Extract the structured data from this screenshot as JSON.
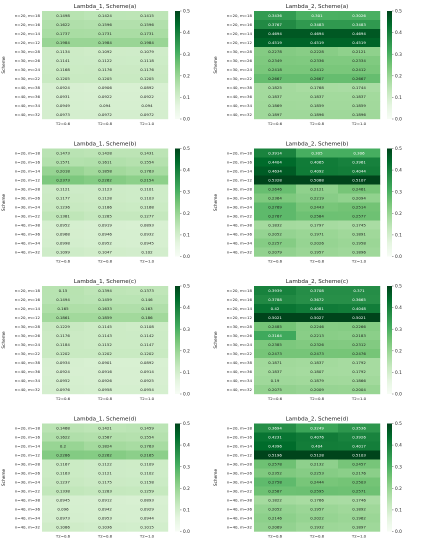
{
  "chart_data": [
    {
      "type": "heatmap",
      "title": "Lambda_1, Scheme(a)",
      "ylabel": "Scheme",
      "x": [
        "T2=0.6",
        "T2=0.8",
        "T2=1.0"
      ],
      "y": [
        "n=20, m=18",
        "n=20, m=16",
        "n=20, m=14",
        "n=20, m=12",
        "n=30, m=28",
        "n=30, m=26",
        "n=30, m=24",
        "n=30, m=22",
        "n=40, m=38",
        "n=40, m=36",
        "n=40, m=34",
        "n=40, m=32"
      ],
      "values": [
        [
          0.1498,
          0.1424,
          0.1415
        ],
        [
          0.1622,
          0.1596,
          0.1596
        ],
        [
          0.1737,
          0.1731,
          0.1731
        ],
        [
          0.1984,
          0.1984,
          0.1984
        ],
        [
          0.1134,
          0.1092,
          0.1079
        ],
        [
          0.1141,
          0.1122,
          0.1118
        ],
        [
          0.1168,
          0.1176,
          0.1176
        ],
        [
          0.1205,
          0.1205,
          0.1205
        ],
        [
          0.0924,
          0.0906,
          0.0892
        ],
        [
          0.0931,
          0.0922,
          0.0922
        ],
        [
          0.0949,
          0.094,
          0.094
        ],
        [
          0.0973,
          0.0972,
          0.0972
        ]
      ],
      "colorbar": {
        "ticks": [
          0.0,
          0.1,
          0.2,
          0.3,
          0.4,
          0.5
        ],
        "min": 0.0,
        "max": 0.5
      }
    },
    {
      "type": "heatmap",
      "title": "Lambda_2, Scheme(a)",
      "ylabel": "Scheme",
      "x": [
        "T2=0.6",
        "T2=0.8",
        "T2=1.0"
      ],
      "y": [
        "n=20, m=18",
        "n=20, m=16",
        "n=20, m=14",
        "n=20, m=12",
        "n=30, m=28",
        "n=30, m=26",
        "n=30, m=24",
        "n=30, m=22",
        "n=40, m=38",
        "n=40, m=36",
        "n=40, m=34",
        "n=40, m=32"
      ],
      "values": [
        [
          0.3436,
          0.301,
          0.3026
        ],
        [
          0.3767,
          0.3483,
          0.3483
        ],
        [
          0.4694,
          0.4694,
          0.4694
        ],
        [
          0.4519,
          0.4519,
          0.4519
        ],
        [
          0.2278,
          0.2228,
          0.2121
        ],
        [
          0.2349,
          0.2336,
          0.2334
        ],
        [
          0.2418,
          0.2412,
          0.2412
        ],
        [
          0.2667,
          0.2667,
          0.2667
        ],
        [
          0.1825,
          0.1768,
          0.1744
        ],
        [
          0.1837,
          0.1837,
          0.1837
        ],
        [
          0.1869,
          0.1859,
          0.1859
        ],
        [
          0.1897,
          0.1896,
          0.1896
        ]
      ],
      "colorbar": {
        "ticks": [
          0.0,
          0.1,
          0.2,
          0.3,
          0.4,
          0.5
        ],
        "min": 0.0,
        "max": 0.5
      }
    },
    {
      "type": "heatmap",
      "title": "Lambda_1, Scheme(b)",
      "ylabel": "Scheme",
      "x": [
        "T2=0.6",
        "T2=0.8",
        "T2=1.0"
      ],
      "y": [
        "n=20, m=18",
        "n=20, m=16",
        "n=20, m=14",
        "n=20, m=12",
        "n=30, m=28",
        "n=30, m=26",
        "n=30, m=24",
        "n=30, m=22",
        "n=40, m=38",
        "n=40, m=36",
        "n=40, m=34",
        "n=40, m=32"
      ],
      "values": [
        [
          0.1473,
          0.1428,
          0.1431
        ],
        [
          0.1571,
          0.1611,
          0.1554
        ],
        [
          0.2018,
          0.1858,
          0.1763
        ],
        [
          0.2373,
          0.2262,
          0.2154
        ],
        [
          0.1121,
          0.1123,
          0.1101
        ],
        [
          0.1177,
          0.1128,
          0.1103
        ],
        [
          0.1236,
          0.1186,
          0.1168
        ],
        [
          0.1381,
          0.1285,
          0.1277
        ],
        [
          0.0952,
          0.0919,
          0.0893
        ],
        [
          0.0968,
          0.0946,
          0.0932
        ],
        [
          0.0998,
          0.0952,
          0.0945
        ],
        [
          0.1099,
          0.1047,
          0.102
        ]
      ],
      "colorbar": {
        "ticks": [
          0.0,
          0.1,
          0.2,
          0.3,
          0.4,
          0.5
        ],
        "min": 0.0,
        "max": 0.5
      }
    },
    {
      "type": "heatmap",
      "title": "Lambda_2, Scheme(b)",
      "ylabel": "Scheme",
      "x": [
        "T2=0.6",
        "T2=0.8",
        "T2=1.0"
      ],
      "y": [
        "n=20, m=18",
        "n=20, m=16",
        "n=20, m=14",
        "n=20, m=12",
        "n=30, m=28",
        "n=30, m=26",
        "n=30, m=24",
        "n=30, m=22",
        "n=40, m=38",
        "n=40, m=36",
        "n=40, m=34",
        "n=40, m=32"
      ],
      "values": [
        [
          0.3914,
          0.305,
          0.306
        ],
        [
          0.4404,
          0.4065,
          0.3961
        ],
        [
          0.4634,
          0.4092,
          0.4044
        ],
        [
          0.5328,
          0.5088,
          0.5107
        ],
        [
          0.2646,
          0.2121,
          0.2461
        ],
        [
          0.2364,
          0.2219,
          0.2094
        ],
        [
          0.2769,
          0.2443,
          0.2514
        ],
        [
          0.2767,
          0.2584,
          0.2577
        ],
        [
          0.1832,
          0.1797,
          0.1745
        ],
        [
          0.2052,
          0.1971,
          0.1891
        ],
        [
          0.2257,
          0.2026,
          0.1958
        ],
        [
          0.2079,
          0.1957,
          0.1896
        ]
      ],
      "colorbar": {
        "ticks": [
          0.0,
          0.1,
          0.2,
          0.3,
          0.4,
          0.5
        ],
        "min": 0.0,
        "max": 0.5
      }
    },
    {
      "type": "heatmap",
      "title": "Lambda_1, Scheme(c)",
      "ylabel": "Scheme",
      "x": [
        "T2=0.6",
        "T2=0.8",
        "T2=1.0"
      ],
      "y": [
        "n=20, m=18",
        "n=20, m=16",
        "n=20, m=14",
        "n=20, m=12",
        "n=30, m=28",
        "n=30, m=26",
        "n=30, m=24",
        "n=30, m=22",
        "n=40, m=38",
        "n=40, m=36",
        "n=40, m=34",
        "n=40, m=32"
      ],
      "values": [
        [
          0.15,
          0.1394,
          0.1373
        ],
        [
          0.1494,
          0.1459,
          0.146
        ],
        [
          0.165,
          0.1633,
          0.163
        ],
        [
          0.1861,
          0.1859,
          0.186
        ],
        [
          0.1229,
          0.1145,
          0.1108
        ],
        [
          0.1176,
          0.1143,
          0.1142
        ],
        [
          0.1184,
          0.1152,
          0.1147
        ],
        [
          0.1202,
          0.1202,
          0.1202
        ],
        [
          0.0934,
          0.0901,
          0.0892
        ],
        [
          0.0924,
          0.0916,
          0.0914
        ],
        [
          0.0952,
          0.0926,
          0.0925
        ],
        [
          0.0976,
          0.0958,
          0.0954
        ]
      ],
      "colorbar": {
        "ticks": [
          0.0,
          0.1,
          0.2,
          0.3,
          0.4,
          0.5
        ],
        "min": 0.0,
        "max": 0.5
      }
    },
    {
      "type": "heatmap",
      "title": "Lambda_2, Scheme(c)",
      "ylabel": "Scheme",
      "x": [
        "T2=0.6",
        "T2=0.8",
        "T2=1.0"
      ],
      "y": [
        "n=20, m=18",
        "n=20, m=16",
        "n=20, m=14",
        "n=20, m=12",
        "n=30, m=28",
        "n=30, m=26",
        "n=30, m=24",
        "n=30, m=22",
        "n=40, m=38",
        "n=40, m=36",
        "n=40, m=34",
        "n=40, m=32"
      ],
      "values": [
        [
          0.3939,
          0.3708,
          0.371
        ],
        [
          0.3788,
          0.3672,
          0.3665
        ],
        [
          0.42,
          0.4081,
          0.4048
        ],
        [
          0.5021,
          0.5027,
          0.5021
        ],
        [
          0.2485,
          0.2246,
          0.2266
        ],
        [
          0.3164,
          0.2213,
          0.2183
        ],
        [
          0.2385,
          0.2326,
          0.2312
        ],
        [
          0.2473,
          0.2473,
          0.2476
        ],
        [
          0.1871,
          0.1837,
          0.1792
        ],
        [
          0.1837,
          0.1807,
          0.1792
        ],
        [
          0.19,
          0.1879,
          0.1866
        ],
        [
          0.2075,
          0.2009,
          0.2004
        ]
      ],
      "colorbar": {
        "ticks": [
          0.0,
          0.1,
          0.2,
          0.3,
          0.4,
          0.5
        ],
        "min": 0.0,
        "max": 0.5
      }
    },
    {
      "type": "heatmap",
      "title": "Lambda_1, Scheme(d)",
      "ylabel": "Scheme",
      "x": [
        "T2=0.6",
        "T2=0.8",
        "T2=1.0"
      ],
      "y": [
        "n=20, m=18",
        "n=20, m=16",
        "n=20, m=14",
        "n=20, m=12",
        "n=30, m=28",
        "n=30, m=26",
        "n=30, m=24",
        "n=30, m=22",
        "n=40, m=38",
        "n=40, m=36",
        "n=40, m=34",
        "n=40, m=32"
      ],
      "values": [
        [
          0.1468,
          0.1421,
          0.1459
        ],
        [
          0.1622,
          0.1587,
          0.1554
        ],
        [
          0.2,
          0.1824,
          0.1763
        ],
        [
          0.2286,
          0.2262,
          0.2165
        ],
        [
          0.1167,
          0.1122,
          0.1109
        ],
        [
          0.1163,
          0.1121,
          0.1102
        ],
        [
          0.1237,
          0.1175,
          0.1158
        ],
        [
          0.1338,
          0.1283,
          0.1259
        ],
        [
          0.0945,
          0.0912,
          0.0893
        ],
        [
          0.096,
          0.0942,
          0.0929
        ],
        [
          0.0973,
          0.0953,
          0.0944
        ],
        [
          0.1086,
          0.1036,
          0.1015
        ]
      ],
      "colorbar": {
        "ticks": [
          0.0,
          0.1,
          0.2,
          0.3,
          0.4,
          0.5
        ],
        "min": 0.0,
        "max": 0.5
      }
    },
    {
      "type": "heatmap",
      "title": "Lambda_2, Scheme(d)",
      "ylabel": "Scheme",
      "x": [
        "T2=0.6",
        "T2=0.8",
        "T2=1.0"
      ],
      "y": [
        "n=20, m=18",
        "n=20, m=16",
        "n=20, m=14",
        "n=20, m=12",
        "n=30, m=28",
        "n=30, m=26",
        "n=30, m=24",
        "n=30, m=22",
        "n=40, m=38",
        "n=40, m=36",
        "n=40, m=34",
        "n=40, m=32"
      ],
      "values": [
        [
          0.3694,
          0.3249,
          0.3536
        ],
        [
          0.4231,
          0.4076,
          0.3926
        ],
        [
          0.4396,
          0.404,
          0.4017
        ],
        [
          0.5196,
          0.5128,
          0.5103
        ],
        [
          0.2578,
          0.2132,
          0.2457
        ],
        [
          0.2352,
          0.2253,
          0.2176
        ],
        [
          0.2758,
          0.2444,
          0.2503
        ],
        [
          0.2587,
          0.2595,
          0.2571
        ],
        [
          0.1822,
          0.1766,
          0.1746
        ],
        [
          0.2052,
          0.1957,
          0.1892
        ],
        [
          0.2146,
          0.2022,
          0.1962
        ],
        [
          0.2069,
          0.1932,
          0.1897
        ]
      ],
      "colorbar": {
        "ticks": [
          0.0,
          0.1,
          0.2,
          0.3,
          0.4,
          0.5
        ],
        "min": 0.0,
        "max": 0.5
      }
    }
  ]
}
